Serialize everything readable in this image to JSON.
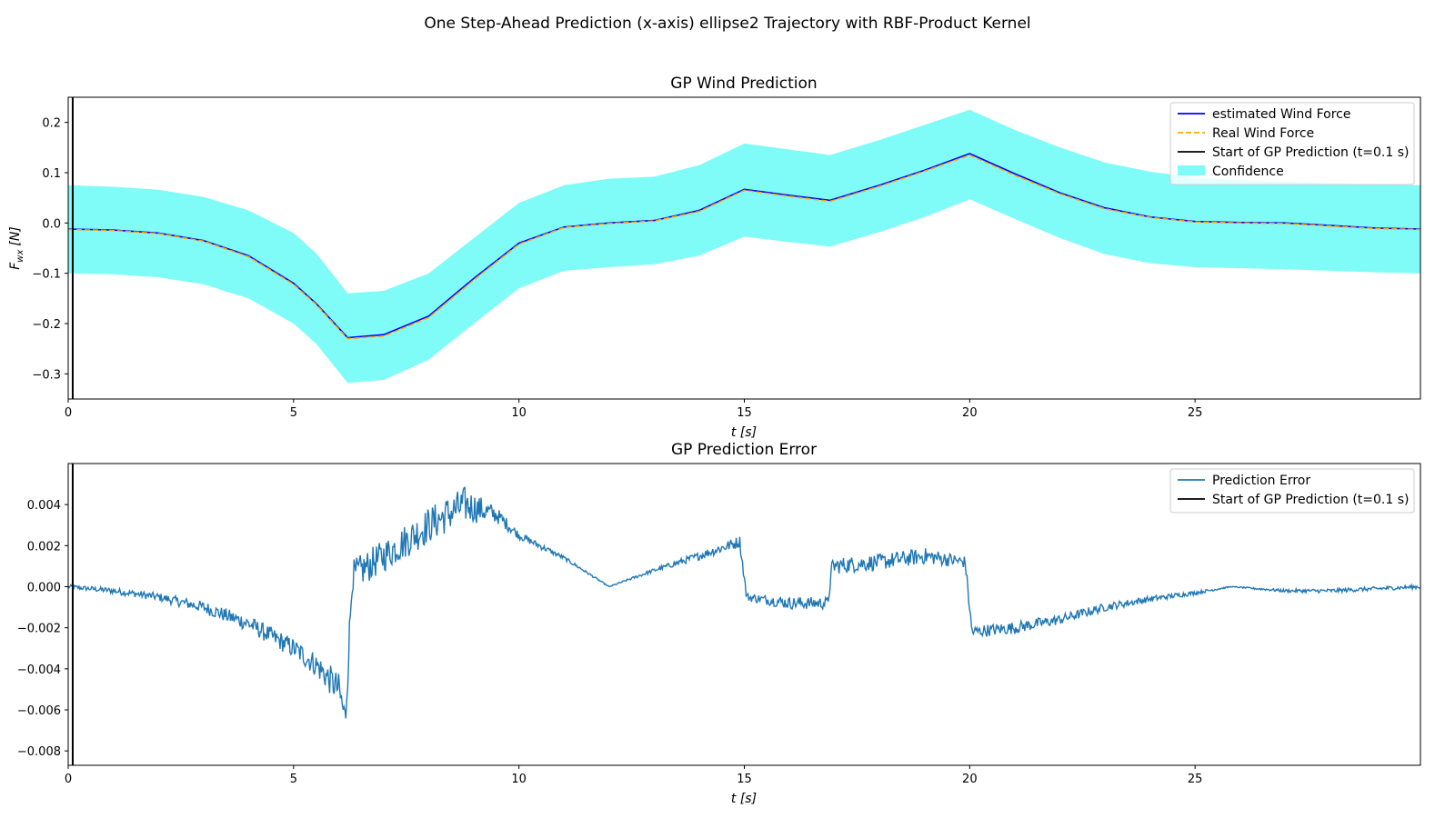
{
  "figure": {
    "suptitle": "One Step-Ahead Prediction (x-axis) ellipse2 Trajectory with RBF-Product Kernel"
  },
  "colors": {
    "estimated": "#0000ff",
    "real": "#ffa500",
    "start_line": "#000000",
    "confidence": "#7ffcf7",
    "error": "#1f77b4"
  },
  "chart_data": [
    {
      "type": "line",
      "title": "GP Wind Prediction",
      "xlabel": "t [s]",
      "ylabel": "F_wx [N]",
      "ylabel_main": "F",
      "ylabel_sub": "wx",
      "ylabel_unit": "[N]",
      "xlim": [
        0,
        30
      ],
      "ylim": [
        -0.35,
        0.25
      ],
      "xticks": [
        0,
        5,
        10,
        15,
        20,
        25
      ],
      "yticks": [
        -0.3,
        -0.2,
        -0.1,
        0.0,
        0.1,
        0.2
      ],
      "ytick_labels": [
        "−0.3",
        "−0.2",
        "−0.1",
        "0.0",
        "0.1",
        "0.2"
      ],
      "legend_position": "top-right",
      "legend": [
        "estimated Wind Force",
        "Real Wind Force",
        "Start of GP Prediction (t=0.1 s)",
        "Confidence"
      ],
      "start_line_x": 0.1,
      "x": [
        0,
        1,
        2,
        3,
        4,
        5,
        5.5,
        6.2,
        7,
        8,
        9,
        10,
        11,
        12,
        13,
        14,
        15,
        16,
        16.9,
        18,
        19,
        20,
        21,
        22,
        23,
        24,
        25,
        26,
        27,
        28,
        29,
        30
      ],
      "series": [
        {
          "name": "estimated Wind Force",
          "style": "solid",
          "values": [
            -0.012,
            -0.014,
            -0.02,
            -0.035,
            -0.065,
            -0.12,
            -0.16,
            -0.228,
            -0.222,
            -0.185,
            -0.11,
            -0.04,
            -0.008,
            0.0,
            0.005,
            0.025,
            0.067,
            0.055,
            0.045,
            0.075,
            0.105,
            0.138,
            0.098,
            0.06,
            0.03,
            0.012,
            0.003,
            0.001,
            0.0,
            -0.005,
            -0.01,
            -0.012
          ]
        },
        {
          "name": "Real Wind Force",
          "style": "dashed",
          "values": [
            -0.013,
            -0.015,
            -0.021,
            -0.036,
            -0.067,
            -0.122,
            -0.162,
            -0.23,
            -0.225,
            -0.188,
            -0.113,
            -0.042,
            -0.009,
            -0.001,
            0.004,
            0.023,
            0.065,
            0.053,
            0.043,
            0.073,
            0.103,
            0.135,
            0.095,
            0.058,
            0.028,
            0.011,
            0.002,
            0.0,
            -0.001,
            -0.006,
            -0.011,
            -0.013
          ]
        }
      ],
      "confidence": {
        "upper": [
          0.075,
          0.072,
          0.066,
          0.052,
          0.025,
          -0.02,
          -0.06,
          -0.14,
          -0.135,
          -0.1,
          -0.03,
          0.04,
          0.075,
          0.088,
          0.092,
          0.115,
          0.158,
          0.146,
          0.135,
          0.165,
          0.195,
          0.225,
          0.185,
          0.15,
          0.12,
          0.102,
          0.09,
          0.085,
          0.082,
          0.079,
          0.076,
          0.075
        ],
        "lower": [
          -0.1,
          -0.102,
          -0.108,
          -0.122,
          -0.15,
          -0.2,
          -0.24,
          -0.318,
          -0.312,
          -0.272,
          -0.2,
          -0.13,
          -0.095,
          -0.088,
          -0.082,
          -0.065,
          -0.027,
          -0.038,
          -0.047,
          -0.018,
          0.012,
          0.047,
          0.008,
          -0.03,
          -0.062,
          -0.08,
          -0.088,
          -0.09,
          -0.092,
          -0.095,
          -0.098,
          -0.1
        ]
      }
    },
    {
      "type": "line",
      "title": "GP Prediction Error",
      "xlabel": "t [s]",
      "ylabel": "",
      "xlim": [
        0,
        30
      ],
      "ylim": [
        -0.0087,
        0.006
      ],
      "xticks": [
        0,
        5,
        10,
        15,
        20,
        25
      ],
      "yticks": [
        -0.008,
        -0.006,
        -0.004,
        -0.002,
        0.0,
        0.002,
        0.004
      ],
      "ytick_labels": [
        "−0.008",
        "−0.006",
        "−0.004",
        "−0.002",
        "0.000",
        "0.002",
        "0.004"
      ],
      "legend_position": "top-right",
      "legend": [
        "Prediction Error",
        "Start of GP Prediction (t=0.1 s)"
      ],
      "start_line_x": 0.1,
      "x": [
        0,
        1,
        2,
        3,
        4,
        5,
        5.5,
        6.0,
        6.15,
        6.3,
        7,
        8,
        8.8,
        9.5,
        10,
        11,
        12,
        13,
        14,
        14.9,
        15.05,
        16,
        16.85,
        16.95,
        18,
        19,
        19.9,
        20.05,
        21,
        22,
        23,
        24,
        25,
        25.8,
        27,
        28,
        29,
        30
      ],
      "series": [
        {
          "name": "Prediction Error",
          "values": [
            0.0,
            -0.0002,
            -0.0005,
            -0.001,
            -0.0018,
            -0.003,
            -0.0038,
            -0.005,
            -0.0065,
            0.0005,
            0.0015,
            0.003,
            0.004,
            0.0035,
            0.0025,
            0.0014,
            0.0,
            0.0008,
            0.0015,
            0.0022,
            -0.0005,
            -0.0008,
            -0.0008,
            0.001,
            0.0012,
            0.0015,
            0.0012,
            -0.0022,
            -0.002,
            -0.0016,
            -0.001,
            -0.0006,
            -0.0003,
            0.0,
            -0.0002,
            -0.0002,
            -0.0001,
            0.0
          ]
        }
      ],
      "noise": [
        0.0001,
        0.00015,
        0.0002,
        0.0003,
        0.0004,
        0.0005,
        0.0006,
        0.0008,
        0.0009,
        0.0008,
        0.0008,
        0.0009,
        0.0009,
        0.0004,
        0.0002,
        0.0001,
        2e-05,
        0.0001,
        0.0002,
        0.0003,
        0.0002,
        0.0003,
        0.0003,
        0.0004,
        0.0004,
        0.0004,
        0.0003,
        0.0003,
        0.0003,
        0.00025,
        0.0002,
        0.00015,
        0.0001,
        2e-05,
        8e-05,
        0.0001,
        0.0001,
        0.0001
      ]
    }
  ]
}
